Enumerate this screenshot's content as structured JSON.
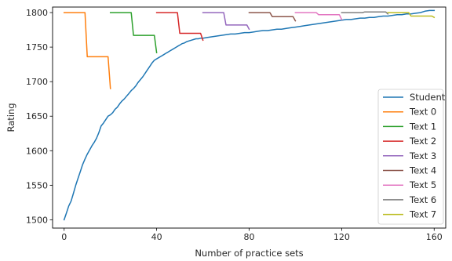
{
  "chart_data": {
    "type": "line",
    "title": "",
    "xlabel": "Number of practice sets",
    "ylabel": "Rating",
    "xlim": [
      -5,
      165
    ],
    "ylim": [
      1488,
      1808
    ],
    "xticks": [
      0,
      40,
      80,
      120,
      160
    ],
    "yticks": [
      1500,
      1550,
      1600,
      1650,
      1700,
      1750,
      1800
    ],
    "grid": false,
    "legend_position": "lower right",
    "series": [
      {
        "name": "Student",
        "color": "#1f77b4",
        "x": [
          0,
          1,
          2,
          3,
          4,
          5,
          6,
          7,
          8,
          9,
          10,
          11,
          12,
          13,
          14,
          15,
          16,
          17,
          18,
          19,
          20,
          21,
          22,
          23,
          24,
          25,
          26,
          27,
          28,
          29,
          30,
          31,
          32,
          33,
          34,
          35,
          36,
          37,
          38,
          39,
          40,
          41,
          42,
          43,
          44,
          45,
          46,
          47,
          48,
          49,
          50,
          51,
          52,
          53,
          54,
          55,
          56,
          57,
          58,
          59,
          60,
          62,
          64,
          66,
          68,
          70,
          72,
          74,
          76,
          78,
          80,
          82,
          84,
          86,
          88,
          90,
          92,
          94,
          96,
          98,
          100,
          102,
          104,
          106,
          108,
          110,
          112,
          114,
          116,
          118,
          120,
          122,
          124,
          126,
          128,
          130,
          132,
          134,
          136,
          138,
          140,
          142,
          144,
          146,
          148,
          150,
          152,
          154,
          156,
          158,
          160
        ],
        "y": [
          1500,
          1510,
          1520,
          1527,
          1538,
          1550,
          1560,
          1570,
          1580,
          1588,
          1595,
          1601,
          1607,
          1612,
          1618,
          1626,
          1636,
          1640,
          1645,
          1650,
          1652,
          1655,
          1660,
          1663,
          1668,
          1672,
          1675,
          1679,
          1683,
          1687,
          1690,
          1694,
          1699,
          1703,
          1707,
          1712,
          1717,
          1722,
          1727,
          1731,
          1733,
          1735,
          1737,
          1739,
          1741,
          1743,
          1745,
          1747,
          1749,
          1751,
          1753,
          1755,
          1756,
          1758,
          1759,
          1760,
          1761,
          1762,
          1762,
          1763,
          1763,
          1764,
          1765,
          1766,
          1767,
          1768,
          1769,
          1769,
          1770,
          1771,
          1771,
          1772,
          1773,
          1774,
          1774,
          1775,
          1776,
          1776,
          1777,
          1778,
          1779,
          1780,
          1781,
          1782,
          1783,
          1784,
          1785,
          1786,
          1787,
          1788,
          1789,
          1790,
          1790,
          1791,
          1792,
          1792,
          1793,
          1793,
          1794,
          1795,
          1795,
          1796,
          1797,
          1797,
          1798,
          1798,
          1799,
          1800,
          1802,
          1803,
          1803
        ]
      },
      {
        "name": "Text 0",
        "color": "#ff7f0e",
        "x": [
          0,
          9,
          10,
          19,
          20
        ],
        "y": [
          1800,
          1800,
          1736,
          1736,
          1690
        ]
      },
      {
        "name": "Text 1",
        "color": "#2ca02c",
        "x": [
          20,
          29,
          30,
          39,
          40
        ],
        "y": [
          1800,
          1800,
          1767,
          1767,
          1742
        ]
      },
      {
        "name": "Text 2",
        "color": "#d62728",
        "x": [
          40,
          49,
          50,
          59,
          60
        ],
        "y": [
          1800,
          1800,
          1770,
          1770,
          1760
        ]
      },
      {
        "name": "Text 3",
        "color": "#9467bd",
        "x": [
          60,
          69,
          70,
          79,
          80
        ],
        "y": [
          1800,
          1800,
          1782,
          1782,
          1776
        ]
      },
      {
        "name": "Text 4",
        "color": "#8c564b",
        "x": [
          80,
          89,
          90,
          99,
          100
        ],
        "y": [
          1800,
          1800,
          1794,
          1794,
          1788
        ]
      },
      {
        "name": "Text 5",
        "color": "#e377c2",
        "x": [
          100,
          109,
          110,
          119,
          120
        ],
        "y": [
          1800,
          1800,
          1797,
          1797,
          1790
        ]
      },
      {
        "name": "Text 6",
        "color": "#7f7f7f",
        "x": [
          120,
          129,
          130,
          139,
          140
        ],
        "y": [
          1800,
          1800,
          1801,
          1801,
          1798
        ]
      },
      {
        "name": "Text 7",
        "color": "#bcbd22",
        "x": [
          140,
          149,
          150,
          159,
          160
        ],
        "y": [
          1800,
          1800,
          1795,
          1795,
          1793
        ]
      }
    ]
  }
}
